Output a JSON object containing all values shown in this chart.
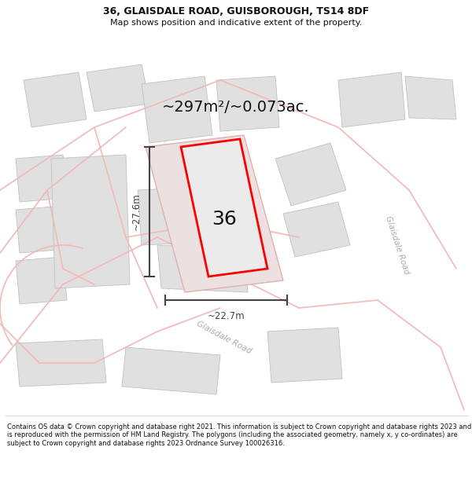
{
  "title_line1": "36, GLAISDALE ROAD, GUISBOROUGH, TS14 8DF",
  "title_line2": "Map shows position and indicative extent of the property.",
  "area_text": "~297m²/~0.073ac.",
  "number_label": "36",
  "dim_height": "~27.6m",
  "dim_width": "~22.7m",
  "road_label_diag": "Glaisdale Road",
  "road_label_right": "Glaisdale Road",
  "footer_text": "Contains OS data © Crown copyright and database right 2021. This information is subject to Crown copyright and database rights 2023 and is reproduced with the permission of HM Land Registry. The polygons (including the associated geometry, namely x, y co-ordinates) are subject to Crown copyright and database rights 2023 Ordnance Survey 100026316.",
  "bg_color": "#ffffff",
  "map_bg": "#f8f8f8",
  "road_color": "#f2b8b8",
  "building_color": "#e0e0e0",
  "building_edge": "#c0c0c0",
  "property_fill": "#e8e8e8",
  "property_edge": "#ff0000",
  "dim_color": "#444444",
  "text_color": "#111111",
  "road_text_color": "#aaaaaa",
  "title_fontsize": 9.0,
  "subtitle_fontsize": 8.0,
  "area_fontsize": 14.0,
  "number_fontsize": 18.0,
  "dim_fontsize": 8.5,
  "road_label_fontsize": 7.5,
  "footer_fontsize": 6.0
}
